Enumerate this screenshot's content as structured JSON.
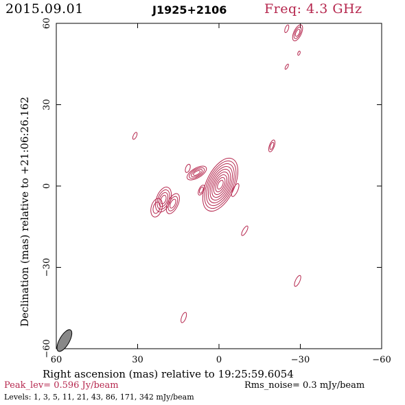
{
  "header": {
    "date": "2015.09.01",
    "source": "J1925+2106",
    "frequency": "Freq: 4.3 GHz"
  },
  "footer": {
    "peak": "Peak_lev=  0.596 Jy/beam",
    "rms": "Rms_noise=  0.3 mJy/beam",
    "levels": "Levels:   1,    3,    5,   11,   21,   43,   86,  171,  342  mJy/beam"
  },
  "colors": {
    "contour": "#b5264d",
    "beam_fill": "#888888",
    "axis": "#000000"
  },
  "chart_data": {
    "type": "contour",
    "xlabel": "Right ascension (mas) relative to 19:25:59.6054",
    "ylabel": "Declination (mas) relative to +21:06:26.162",
    "xlim": [
      60,
      -60
    ],
    "ylim": [
      -60,
      60
    ],
    "xticks": [
      "60",
      "30",
      "0",
      "−30",
      "−60"
    ],
    "yticks": [
      "−60",
      "−30",
      "0",
      "30",
      "60"
    ],
    "grid": false,
    "beam": {
      "x": 57,
      "y": -57,
      "major": 4.5,
      "minor": 1.8,
      "pa_deg": 30
    },
    "components": [
      {
        "x": -0.5,
        "y": 0.5,
        "major": 10.5,
        "minor": 5.2,
        "pa_deg": 25,
        "levels": 9
      },
      {
        "x": 8.2,
        "y": 4.8,
        "major": 4.0,
        "minor": 1.8,
        "pa_deg": 60,
        "levels": 4
      },
      {
        "x": 11.5,
        "y": 6.5,
        "major": 1.6,
        "minor": 0.8,
        "pa_deg": 20,
        "levels": 1
      },
      {
        "x": 20.5,
        "y": -5.0,
        "major": 4.8,
        "minor": 2.6,
        "pa_deg": 20,
        "levels": 4
      },
      {
        "x": 17.0,
        "y": -6.5,
        "major": 4.0,
        "minor": 1.9,
        "pa_deg": 25,
        "levels": 3
      },
      {
        "x": 23.0,
        "y": -8.0,
        "major": 3.5,
        "minor": 2.0,
        "pa_deg": 15,
        "levels": 2
      },
      {
        "x": 6.5,
        "y": -1.5,
        "major": 2.0,
        "minor": 0.9,
        "pa_deg": 25,
        "levels": 2
      },
      {
        "x": -6.0,
        "y": -1.5,
        "major": 2.6,
        "minor": 0.9,
        "pa_deg": 25,
        "levels": 1
      },
      {
        "x": -9.5,
        "y": -16.5,
        "major": 2.0,
        "minor": 0.7,
        "pa_deg": 30,
        "levels": 1
      },
      {
        "x": -19.5,
        "y": 14.8,
        "major": 2.3,
        "minor": 0.9,
        "pa_deg": 20,
        "levels": 2
      },
      {
        "x": 31.0,
        "y": 18.5,
        "major": 1.4,
        "minor": 0.6,
        "pa_deg": 25,
        "levels": 1
      },
      {
        "x": -29.0,
        "y": 56.5,
        "major": 3.2,
        "minor": 1.4,
        "pa_deg": 25,
        "levels": 3
      },
      {
        "x": -25.0,
        "y": 58.0,
        "major": 1.5,
        "minor": 0.6,
        "pa_deg": 20,
        "levels": 1
      },
      {
        "x": -29.5,
        "y": 49.0,
        "major": 0.8,
        "minor": 0.4,
        "pa_deg": 20,
        "levels": 1
      },
      {
        "x": -25.0,
        "y": 44.0,
        "major": 1.1,
        "minor": 0.4,
        "pa_deg": 30,
        "levels": 1
      },
      {
        "x": -29.0,
        "y": -35.0,
        "major": 2.2,
        "minor": 0.8,
        "pa_deg": 25,
        "levels": 1
      },
      {
        "x": 13.0,
        "y": -48.5,
        "major": 2.0,
        "minor": 0.8,
        "pa_deg": 20,
        "levels": 1
      }
    ]
  }
}
